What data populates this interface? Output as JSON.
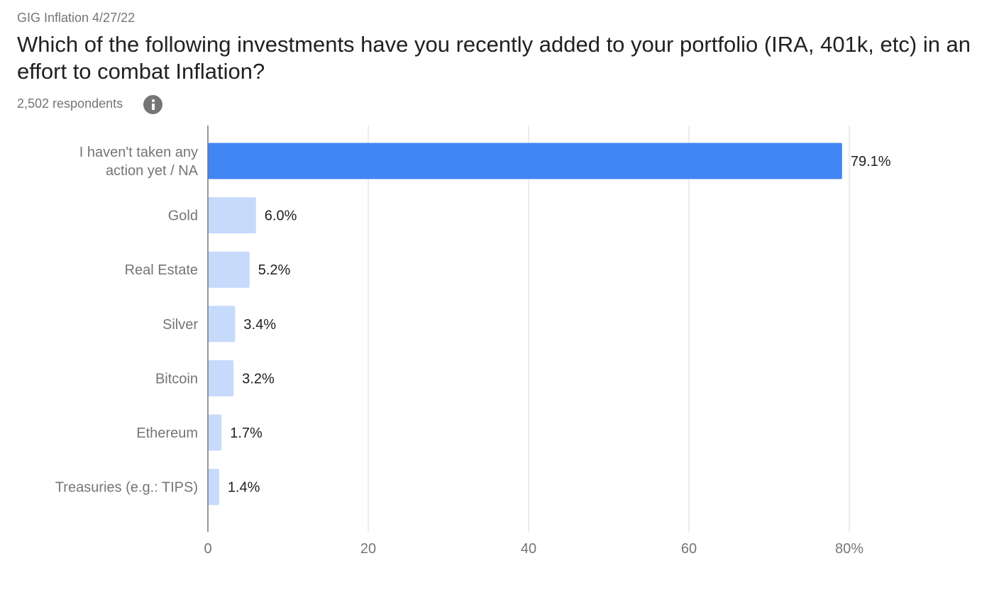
{
  "header": {
    "survey_label": "GIG Inflation 4/27/22",
    "question": "Which of the following investments have you recently added to your portfolio (IRA, 401k, etc) in an effort to combat Inflation?",
    "respondents": "2,502 respondents"
  },
  "colors": {
    "highlight_bar": "#4285f4",
    "other_bar": "#c6dafc",
    "gridline": "#dadada",
    "axis": "#757575"
  },
  "chart_data": {
    "type": "bar",
    "orientation": "horizontal",
    "title": "Which of the following investments have you recently added to your portfolio (IRA, 401k, etc) in an effort to combat Inflation?",
    "categories": [
      [
        "I haven't taken any",
        "action yet / NA"
      ],
      [
        "Gold"
      ],
      [
        "Real Estate"
      ],
      [
        "Silver"
      ],
      [
        "Bitcoin"
      ],
      [
        "Ethereum"
      ],
      [
        "Treasuries (e.g.: TIPS)"
      ]
    ],
    "values": [
      79.1,
      6.0,
      5.2,
      3.4,
      3.2,
      1.7,
      1.4
    ],
    "value_labels": [
      "79.1%",
      "6.0%",
      "5.2%",
      "3.4%",
      "3.2%",
      "1.7%",
      "1.4%"
    ],
    "highlighted_index": 0,
    "xlim": [
      0,
      80
    ],
    "xticks": [
      {
        "value": 0,
        "label": "0"
      },
      {
        "value": 20,
        "label": "20"
      },
      {
        "value": 40,
        "label": "40"
      },
      {
        "value": 60,
        "label": "60"
      },
      {
        "value": 80,
        "label": "80%"
      }
    ],
    "grid": true
  }
}
